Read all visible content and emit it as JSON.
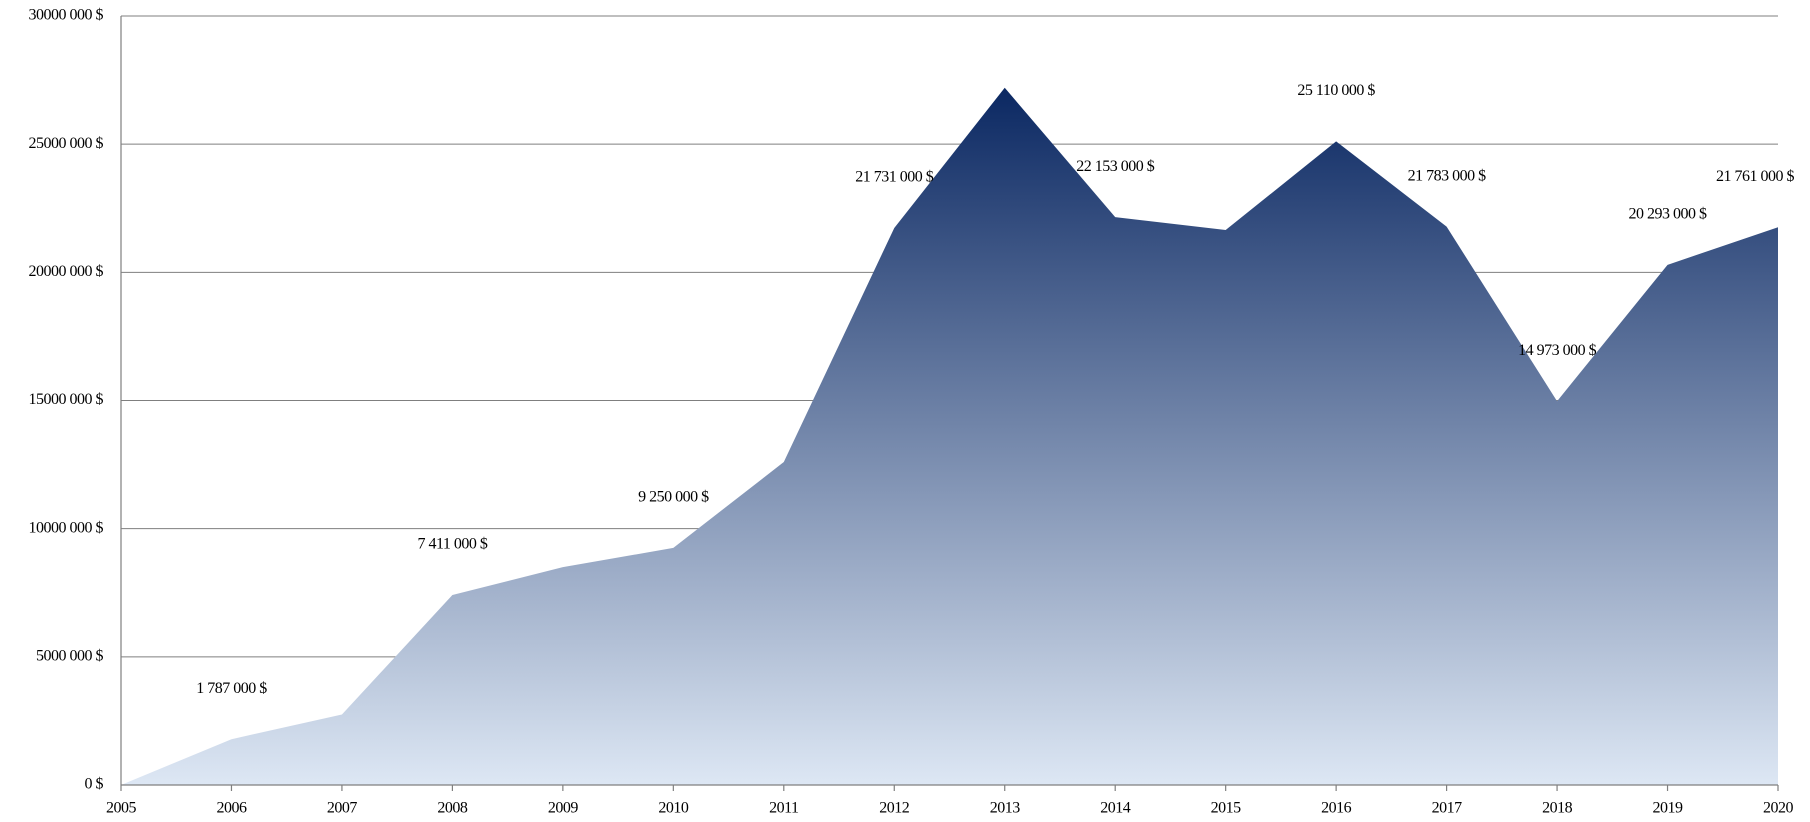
{
  "chart_data": {
    "type": "area",
    "x": [
      2005,
      2006,
      2007,
      2008,
      2009,
      2010,
      2011,
      2012,
      2013,
      2014,
      2015,
      2016,
      2017,
      2018,
      2019,
      2020
    ],
    "values": [
      0,
      1787000,
      2750000,
      7411000,
      8500000,
      9250000,
      12600000,
      21731000,
      27200000,
      22153000,
      21650000,
      25110000,
      21783000,
      14973000,
      20293000,
      21761000
    ],
    "value_labels": [
      null,
      "1 787 000 $",
      null,
      "7 411 000 $",
      null,
      "9 250 000 $",
      null,
      "21 731 000 $",
      null,
      "22 153 000 $",
      null,
      "25 110 000 $",
      "21 783 000 $",
      "14 973 000 $",
      "20 293 000 $",
      "21 761 000 $"
    ],
    "xlim": [
      2005,
      2020
    ],
    "xticks": [
      2005,
      2006,
      2007,
      2008,
      2009,
      2010,
      2011,
      2012,
      2013,
      2014,
      2015,
      2016,
      2017,
      2018,
      2019,
      2020
    ],
    "ylim": [
      0,
      30000000
    ],
    "yticks": [
      {
        "value": 0,
        "label": "0 $"
      },
      {
        "value": 5000000,
        "label": "5000 000 $"
      },
      {
        "value": 10000000,
        "label": "10000 000 $"
      },
      {
        "value": 15000000,
        "label": "15000 000 $"
      },
      {
        "value": 20000000,
        "label": "20000 000 $"
      },
      {
        "value": 25000000,
        "label": "25000 000 $"
      },
      {
        "value": 30000000,
        "label": "30000 000 $"
      }
    ],
    "grid": true,
    "gradient": [
      "#0b2862",
      "#dde7f4"
    ]
  }
}
